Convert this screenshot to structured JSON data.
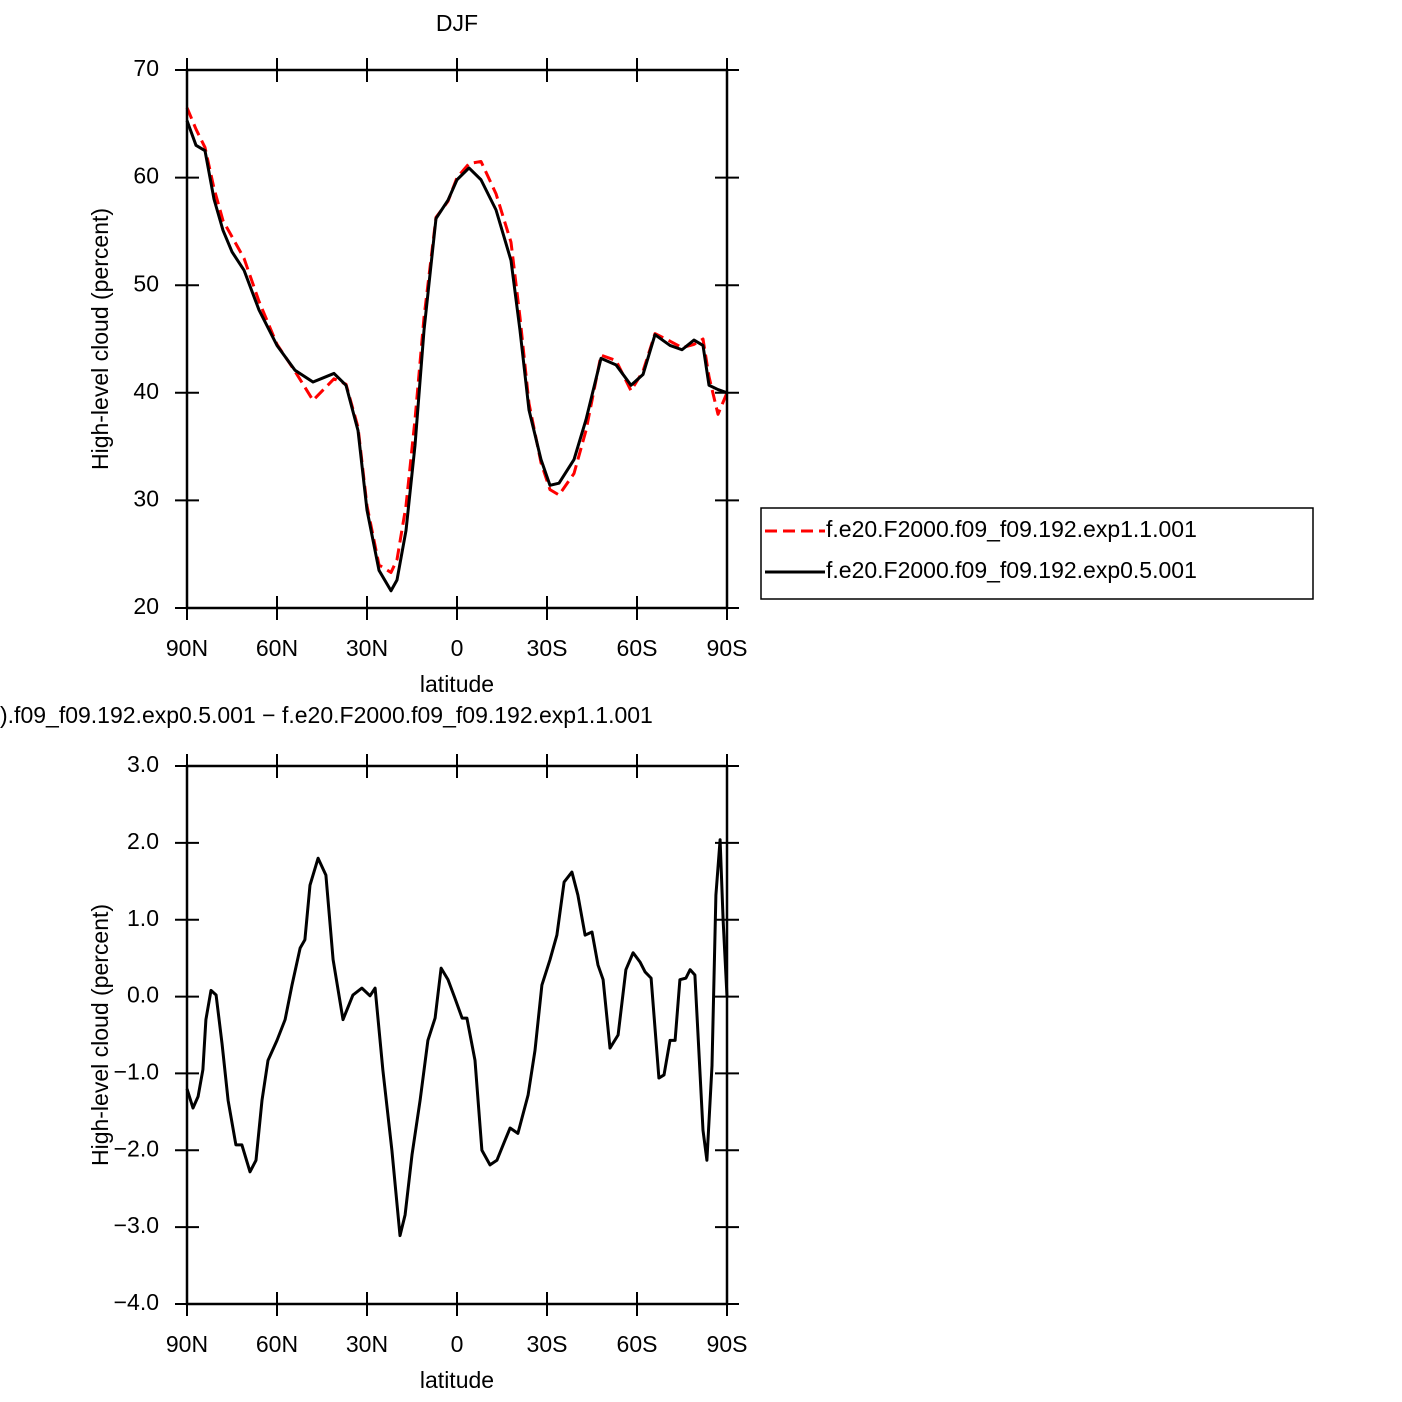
{
  "chart_data": [
    {
      "type": "line",
      "title": "DJF",
      "xlabel": "latitude",
      "ylabel": "High-level cloud (percent)",
      "x": [
        90,
        87,
        84,
        81,
        78,
        75,
        71,
        66,
        60,
        54,
        48,
        41,
        37,
        33,
        30,
        26,
        22,
        20,
        17,
        14,
        11,
        7,
        3,
        0,
        -4,
        -8,
        -13,
        -18,
        -21,
        -24,
        -28,
        -31,
        -34,
        -39,
        -43,
        -48,
        -53,
        -58,
        -62,
        -66,
        -71,
        -75,
        -79,
        -82,
        -84,
        -87,
        -90
      ],
      "series": [
        {
          "name": "f.e20.F2000.f09_f09.192.exp1.1.001",
          "color": "#ff0000",
          "dashed": true,
          "values": [
            66.5,
            64.5,
            62.8,
            59.0,
            56.0,
            54.5,
            52.5,
            48.5,
            44.5,
            42.0,
            39.3,
            41.3,
            40.8,
            36.8,
            29.5,
            24.0,
            23.3,
            24.5,
            29.5,
            37.5,
            47.0,
            56.3,
            57.8,
            60.0,
            61.3,
            61.5,
            58.5,
            54.0,
            47.0,
            39.0,
            33.5,
            31.0,
            30.5,
            32.5,
            36.5,
            43.5,
            43.0,
            40.2,
            42.0,
            45.5,
            44.8,
            44.2,
            44.5,
            45.0,
            41.5,
            38.0,
            40.0
          ]
        },
        {
          "name": "f.e20.F2000.f09_f09.192.exp0.5.001",
          "color": "#000000",
          "dashed": false,
          "values": [
            65.3,
            63.0,
            62.5,
            58.0,
            55.1,
            53.1,
            51.4,
            47.7,
            44.4,
            42.1,
            41.0,
            41.8,
            40.7,
            36.5,
            29.1,
            23.5,
            21.6,
            22.6,
            27.2,
            35.1,
            45.8,
            56.2,
            57.9,
            59.8,
            60.9,
            59.8,
            57.0,
            52.3,
            45.8,
            38.4,
            33.8,
            31.4,
            31.6,
            33.8,
            37.5,
            43.2,
            42.6,
            40.7,
            41.7,
            45.4,
            44.4,
            44.0,
            44.9,
            44.4,
            40.7,
            40.3,
            40.0
          ]
        }
      ],
      "xlim": [
        90,
        -90
      ],
      "xticks": [
        {
          "value": 90,
          "label": "90N"
        },
        {
          "value": 60,
          "label": "60N"
        },
        {
          "value": 30,
          "label": "30N"
        },
        0,
        {
          "value": -30,
          "label": "30S"
        },
        {
          "value": -60,
          "label": "60S"
        },
        {
          "value": -90,
          "label": "90S"
        }
      ],
      "ylim": [
        20,
        70
      ],
      "yticks": [
        20,
        30,
        40,
        50,
        60,
        70
      ],
      "legend": "right"
    },
    {
      "type": "line",
      "title": ").f09_f09.192.exp0.5.001 − f.e20.F2000.f09_f09.192.exp1.1.001",
      "xlabel": "latitude",
      "ylabel": "High-level cloud (percent)",
      "x": [
        90,
        88,
        86.3,
        84.7,
        83.7,
        82,
        80.3,
        78.3,
        76.3,
        73.7,
        71.7,
        69,
        67,
        65,
        63,
        60,
        57.3,
        55,
        52.3,
        50.7,
        49,
        46.3,
        43.7,
        41.3,
        38,
        34.7,
        31.7,
        29,
        27.3,
        24.7,
        21.7,
        19,
        17.3,
        15,
        12.3,
        9.7,
        7.3,
        5.3,
        3,
        0.7,
        -1.7,
        -3.3,
        -6,
        -8.3,
        -11,
        -13.3,
        -16,
        -17.7,
        -20.3,
        -23.7,
        -26,
        -28.3,
        -31,
        -33.3,
        -35.7,
        -38.3,
        -40.3,
        -42.7,
        -45,
        -47,
        -48.7,
        -51,
        -53.7,
        -56.3,
        -58.7,
        -61,
        -62.7,
        -64.7,
        -67.3,
        -69,
        -71,
        -72.7,
        -74.3,
        -76.3,
        -77.7,
        -79.3,
        -82,
        -83.3,
        -85,
        -86.3,
        -87.7,
        -88.7,
        -90
      ],
      "values": [
        -1.2,
        -1.45,
        -1.3,
        -0.95,
        -0.3,
        0.08,
        0.02,
        -0.62,
        -1.35,
        -1.93,
        -1.93,
        -2.28,
        -2.13,
        -1.35,
        -0.83,
        -0.57,
        -0.3,
        0.15,
        0.63,
        0.74,
        1.45,
        1.8,
        1.58,
        0.48,
        -0.3,
        0.02,
        0.11,
        0.01,
        0.11,
        -0.96,
        -2.0,
        -3.11,
        -2.84,
        -2.06,
        -1.35,
        -0.57,
        -0.28,
        0.37,
        0.22,
        -0.02,
        -0.28,
        -0.28,
        -0.83,
        -2.0,
        -2.19,
        -2.13,
        -1.87,
        -1.71,
        -1.78,
        -1.28,
        -0.7,
        0.15,
        0.48,
        0.8,
        1.49,
        1.62,
        1.32,
        0.8,
        0.84,
        0.41,
        0.22,
        -0.67,
        -0.5,
        0.35,
        0.57,
        0.45,
        0.32,
        0.24,
        -1.06,
        -1.02,
        -0.57,
        -0.57,
        0.22,
        0.24,
        0.35,
        0.28,
        -1.74,
        -2.13,
        -0.9,
        1.32,
        2.04,
        1.0,
        0.0
      ],
      "color": "#000000",
      "xlim": [
        90,
        -90
      ],
      "xticks": [
        {
          "value": 90,
          "label": "90N"
        },
        {
          "value": 60,
          "label": "60N"
        },
        {
          "value": 30,
          "label": "30N"
        },
        0,
        {
          "value": -30,
          "label": "30S"
        },
        {
          "value": -60,
          "label": "60S"
        },
        {
          "value": -90,
          "label": "90S"
        }
      ],
      "ylim": [
        -4,
        3
      ],
      "yticks": [
        {
          "value": 3,
          "label": "3.0"
        },
        {
          "value": 2,
          "label": "2.0"
        },
        {
          "value": 1,
          "label": "1.0"
        },
        {
          "value": 0,
          "label": "0.0"
        },
        {
          "value": -1,
          "label": "−1.0"
        },
        {
          "value": -2,
          "label": "−2.0"
        },
        {
          "value": -3,
          "label": "−3.0"
        },
        {
          "value": -4,
          "label": "−4.0"
        }
      ]
    }
  ]
}
